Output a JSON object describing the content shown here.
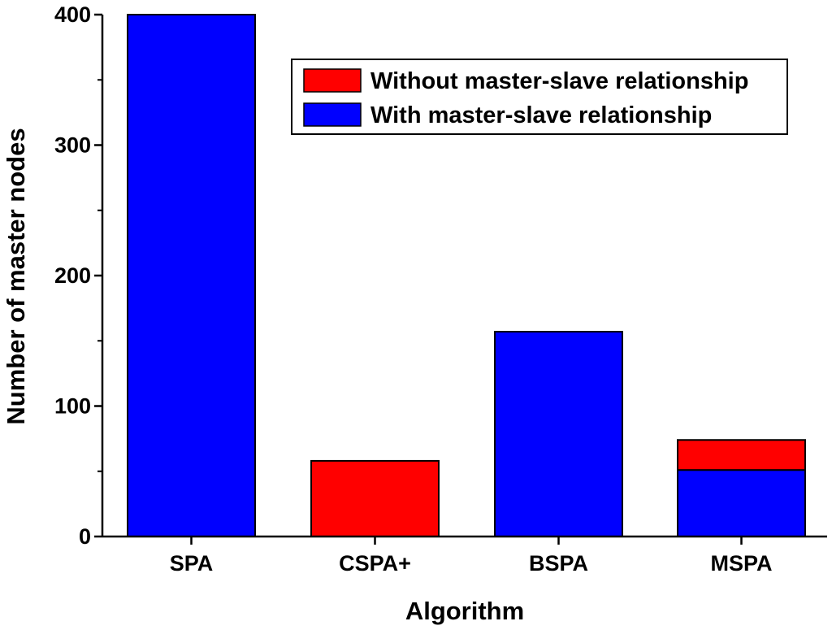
{
  "chart_data": {
    "type": "bar",
    "stacked": true,
    "categories": [
      "SPA",
      "CSPA+",
      "BSPA",
      "MSPA"
    ],
    "series": [
      {
        "name": "With master-slave relationship",
        "color": "#0000ff",
        "values": [
          400,
          0,
          157,
          51
        ]
      },
      {
        "name": "Without master-slave relationship",
        "color": "#ff0000",
        "values": [
          0,
          58,
          0,
          23
        ]
      }
    ],
    "title": "",
    "xlabel": "Algorithm",
    "ylabel": "Number of master nodes",
    "ylim": [
      0,
      400
    ],
    "y_ticks": [
      0,
      100,
      200,
      300,
      400
    ],
    "legend": {
      "placement": "top-right",
      "entries": [
        {
          "label": "Without master-slave relationship",
          "color": "#ff0000"
        },
        {
          "label": "With master-slave relationship",
          "color": "#0000ff"
        }
      ]
    },
    "grid": false
  }
}
